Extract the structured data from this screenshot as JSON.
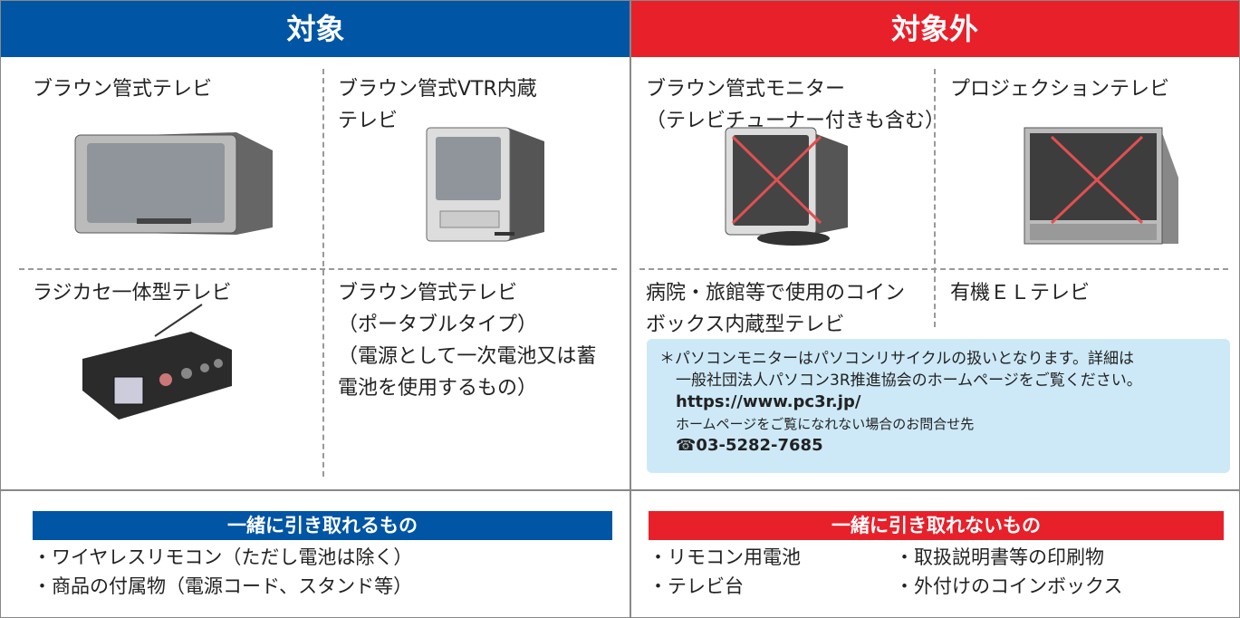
{
  "header": {
    "target": "対象",
    "non_target": "対象外"
  },
  "target_items": [
    {
      "lines": [
        "ブラウン管式テレビ"
      ]
    },
    {
      "lines": [
        "ブラウン管式VTR内蔵",
        "テレビ"
      ]
    },
    {
      "lines": [
        "ラジカセ一体型テレビ"
      ]
    },
    {
      "lines": [
        "ブラウン管式テレビ",
        "（ポータブルタイプ）",
        "（電源として一次電池又は蓄",
        "電池を使用するもの）"
      ]
    }
  ],
  "non_target_items": [
    {
      "lines": [
        "ブラウン管式モニター",
        "（テレビチューナー付きも含む）"
      ]
    },
    {
      "lines": [
        "プロジェクションテレビ"
      ]
    },
    {
      "lines": [
        "病院・旅館等で使用のコイン",
        "ボックス内蔵型テレビ"
      ]
    },
    {
      "lines": [
        "有機ＥＬテレビ"
      ]
    }
  ],
  "note": {
    "lines": [
      "＊パソコンモニターはパソコンリサイクルの扱いとなります。詳細は",
      "一般社団法人パソコン3R推進協会のホームページをご覧ください。",
      "https://www.pc3r.jp/",
      "ホームページをご覧になれない場合のお問合せ先",
      "☎03-5282-7685"
    ]
  },
  "included": {
    "title": "一緒に引き取れるもの",
    "items": [
      "・ワイヤレスリモコン（ただし電池は除く）",
      "・商品の付属物（電源コード、スタンド等）"
    ]
  },
  "excluded": {
    "title": "一緒に引き取れないもの",
    "items": [
      "・リモコン用電池",
      "・取扱説明書等の印刷物",
      "・テレビ台",
      "・外付けのコインボックス"
    ]
  }
}
